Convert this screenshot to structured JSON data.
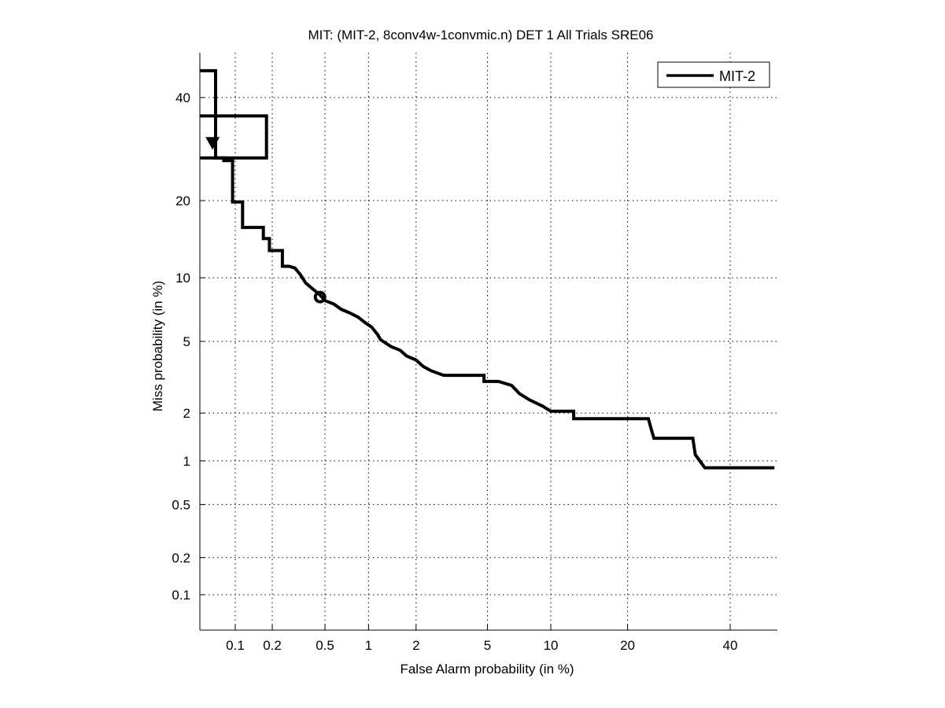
{
  "chart_data": {
    "type": "line",
    "title": "MIT: (MIT-2, 8conv4w-1convmic.n) DET 1 All Trials SRE06",
    "xlabel": "False Alarm probability (in %)",
    "ylabel": "Miss probability (in %)",
    "xscale": "normal-deviate",
    "yscale": "normal-deviate",
    "xlim": [
      0.05,
      50
    ],
    "ylim": [
      0.05,
      50
    ],
    "grid": true,
    "xticks": [
      0.1,
      0.2,
      0.5,
      1,
      2,
      5,
      10,
      20,
      40
    ],
    "xtick_labels": [
      "0.1",
      "0.2",
      "0.5",
      "1",
      "2",
      "5",
      "10",
      "20",
      "40"
    ],
    "yticks": [
      0.1,
      0.2,
      0.5,
      1,
      2,
      5,
      10,
      20,
      40
    ],
    "ytick_labels": [
      "0.1",
      "0.2",
      "0.5",
      "1",
      "2",
      "5",
      "10",
      "20",
      "40"
    ],
    "legend": {
      "position": "top-right",
      "entries": [
        "MIT-2"
      ]
    },
    "series": [
      {
        "name": "MIT-2",
        "color": "#000000",
        "points": [
          [
            0.05,
            46
          ],
          [
            0.068,
            46
          ],
          [
            0.068,
            27.5
          ],
          [
            0.08,
            27.5
          ],
          [
            0.08,
            27
          ],
          [
            0.095,
            27
          ],
          [
            0.095,
            19.8
          ],
          [
            0.115,
            19.8
          ],
          [
            0.115,
            16
          ],
          [
            0.17,
            16
          ],
          [
            0.17,
            14.5
          ],
          [
            0.19,
            14.5
          ],
          [
            0.19,
            13
          ],
          [
            0.24,
            13
          ],
          [
            0.24,
            11.2
          ],
          [
            0.27,
            11.2
          ],
          [
            0.3,
            11
          ],
          [
            0.33,
            10.3
          ],
          [
            0.36,
            9.5
          ],
          [
            0.4,
            9.0
          ],
          [
            0.45,
            8.5
          ],
          [
            0.5,
            7.9
          ],
          [
            0.58,
            7.6
          ],
          [
            0.65,
            7.2
          ],
          [
            0.75,
            6.9
          ],
          [
            0.85,
            6.6
          ],
          [
            0.95,
            6.2
          ],
          [
            1.05,
            5.9
          ],
          [
            1.15,
            5.4
          ],
          [
            1.2,
            5.1
          ],
          [
            1.4,
            4.7
          ],
          [
            1.6,
            4.5
          ],
          [
            1.75,
            4.2
          ],
          [
            2.0,
            4.0
          ],
          [
            2.2,
            3.7
          ],
          [
            2.45,
            3.5
          ],
          [
            2.9,
            3.3
          ],
          [
            3.6,
            3.3
          ],
          [
            4.8,
            3.3
          ],
          [
            4.8,
            3.05
          ],
          [
            5.7,
            3.05
          ],
          [
            6.6,
            2.9
          ],
          [
            7.2,
            2.6
          ],
          [
            8.0,
            2.4
          ],
          [
            9.2,
            2.2
          ],
          [
            10.0,
            2.05
          ],
          [
            12.5,
            2.05
          ],
          [
            12.5,
            1.85
          ],
          [
            17.5,
            1.85
          ],
          [
            23.5,
            1.85
          ],
          [
            24.0,
            1.6
          ],
          [
            24.5,
            1.4
          ],
          [
            32.0,
            1.4
          ],
          [
            32.5,
            1.1
          ],
          [
            34.5,
            0.9
          ],
          [
            50.0,
            0.9
          ]
        ]
      }
    ],
    "annotations": [
      {
        "type": "box",
        "name": "confidence-box",
        "x": [
          0.05,
          0.18
        ],
        "y": [
          27.5,
          36
        ]
      },
      {
        "type": "arrow-marker",
        "name": "down-triangle-marker",
        "x": 0.064,
        "y": 30.5
      },
      {
        "type": "circle-marker",
        "name": "min-dcf-point",
        "x": 0.46,
        "y": 8.2
      }
    ]
  }
}
